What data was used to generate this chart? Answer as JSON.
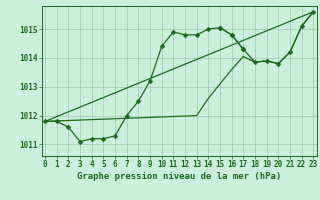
{
  "background_color": "#cceedd",
  "grid_color": "#aaccbb",
  "line_color": "#1a6b1a",
  "xlabel": "Graphe pression niveau de la mer (hPa)",
  "hours": [
    0,
    1,
    2,
    3,
    4,
    5,
    6,
    7,
    8,
    9,
    10,
    11,
    12,
    13,
    14,
    15,
    16,
    17,
    18,
    19,
    20,
    21,
    22,
    23
  ],
  "series_main": [
    1011.8,
    1011.8,
    1011.6,
    1011.1,
    1011.2,
    1011.2,
    1011.3,
    1012.0,
    1012.5,
    1013.2,
    1014.4,
    1014.9,
    1014.8,
    1014.8,
    1015.0,
    1015.05,
    1014.8,
    1014.3,
    null,
    null,
    null,
    null,
    null,
    null
  ],
  "series_late": [
    null,
    null,
    null,
    null,
    null,
    null,
    null,
    null,
    null,
    null,
    null,
    null,
    null,
    null,
    null,
    1015.05,
    1014.8,
    1014.3,
    1013.85,
    1013.9,
    1013.8,
    1014.2,
    1015.1,
    1015.6
  ],
  "series_diag1": [
    1011.8,
    null,
    null,
    null,
    null,
    null,
    null,
    null,
    null,
    null,
    null,
    null,
    null,
    1012.0,
    1012.6,
    1013.1,
    1013.6,
    1014.05,
    1013.85,
    1013.9,
    1013.8,
    1014.2,
    1015.1,
    1015.6
  ],
  "series_diag2": [
    1011.8,
    null,
    null,
    null,
    null,
    null,
    null,
    null,
    null,
    null,
    null,
    null,
    null,
    null,
    null,
    null,
    null,
    null,
    null,
    null,
    null,
    null,
    null,
    1015.6
  ],
  "ylim": [
    1010.6,
    1015.8
  ],
  "yticks": [
    1011,
    1012,
    1013,
    1014,
    1015
  ],
  "xticks": [
    0,
    1,
    2,
    3,
    4,
    5,
    6,
    7,
    8,
    9,
    10,
    11,
    12,
    13,
    14,
    15,
    16,
    17,
    18,
    19,
    20,
    21,
    22,
    23
  ],
  "xlabel_fontsize": 6.5,
  "tick_fontsize": 5.5,
  "marker_size": 2.5,
  "line_width": 0.9
}
